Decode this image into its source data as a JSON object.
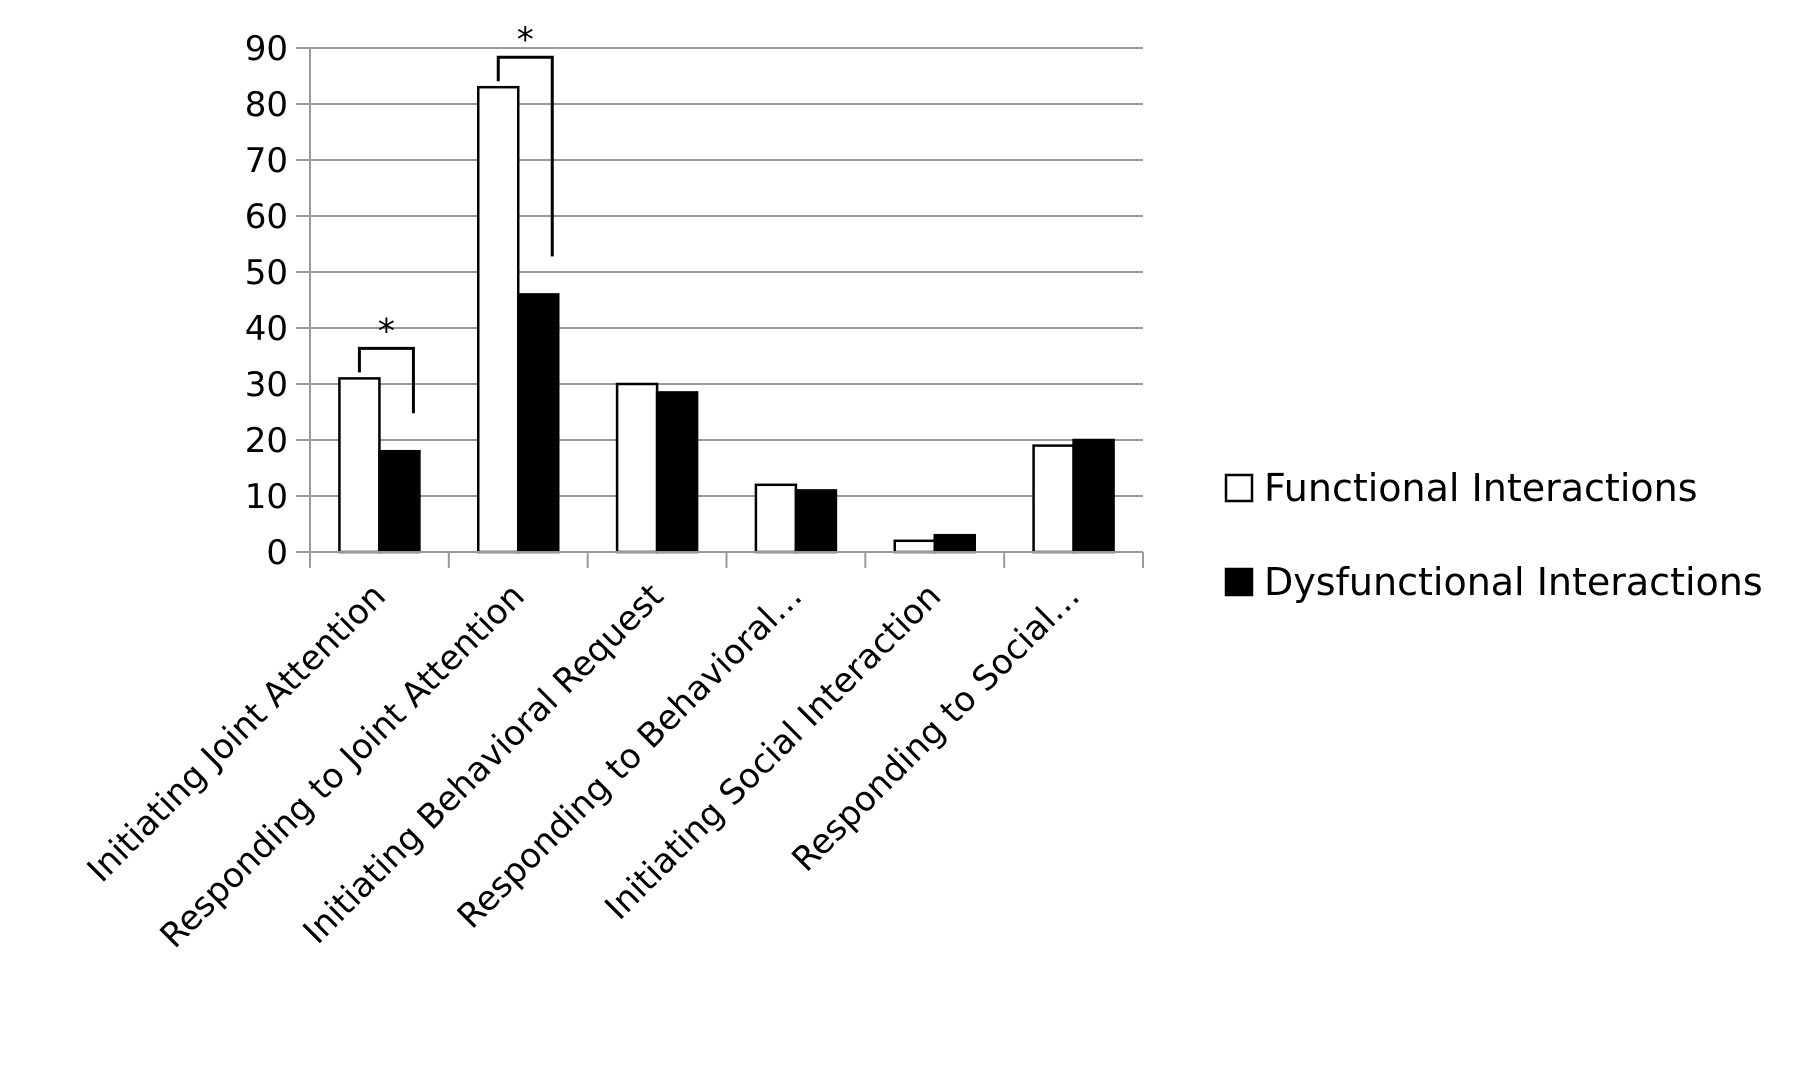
{
  "chart_data": {
    "type": "bar",
    "title": "",
    "xlabel": "",
    "ylabel": "",
    "ylim": [
      0,
      90
    ],
    "yticks": [
      0,
      10,
      20,
      30,
      40,
      50,
      60,
      70,
      80,
      90
    ],
    "grid": true,
    "legend_position": "right",
    "categories": [
      "Initiating Joint Attention",
      "Responding to Joint Attention",
      "Initiating Behavioral Request",
      "Responding to Behavioral…",
      "Initiating Social Interaction",
      "Responding to Social…"
    ],
    "series": [
      {
        "name": "Functional Interactions",
        "values": [
          31,
          83,
          30,
          12,
          2,
          19
        ],
        "fill": "#ffffff"
      },
      {
        "name": "Dysfunctional Interactions",
        "values": [
          18,
          46,
          28.5,
          11,
          3,
          20
        ],
        "fill": "#000000"
      }
    ],
    "annotations": [
      {
        "text": "*",
        "category_index": 0
      },
      {
        "text": "*",
        "category_index": 1
      }
    ]
  }
}
